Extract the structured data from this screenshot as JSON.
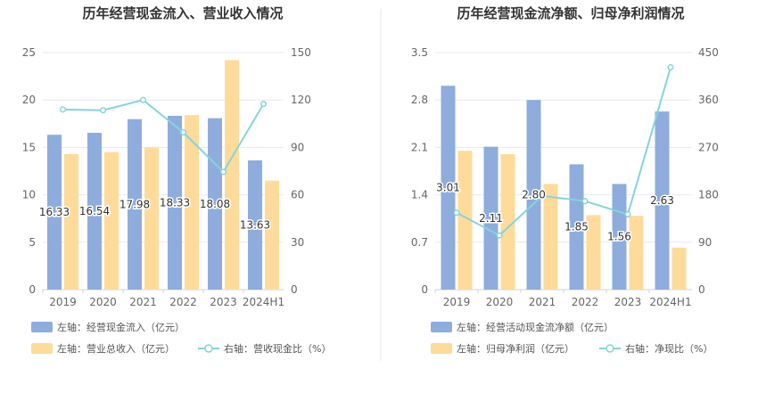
{
  "chart_data": [
    {
      "type": "bar",
      "title": "历年经营现金流入、营业收入情况",
      "categories": [
        "2019",
        "2020",
        "2021",
        "2022",
        "2023",
        "2024H1"
      ],
      "left_ticks": [
        "0",
        "5",
        "10",
        "15",
        "20",
        "25"
      ],
      "right_ticks": [
        "0",
        "30",
        "60",
        "90",
        "120",
        "150"
      ],
      "ylim_left": [
        0,
        25
      ],
      "ylim_right": [
        0,
        150
      ],
      "grid": true,
      "legend_position": "bottom-left",
      "series": [
        {
          "name": "左轴：经营现金流入（亿元）",
          "type": "bar",
          "axis": "left",
          "color": "#8eaddc",
          "values": [
            16.33,
            16.54,
            17.98,
            18.33,
            18.08,
            13.63
          ],
          "labels": [
            "16.33",
            "16.54",
            "17.98",
            "18.33",
            "18.08",
            "13.63"
          ]
        },
        {
          "name": "左轴：营业总收入（亿元）",
          "type": "bar",
          "axis": "left",
          "color": "#fedb9b",
          "values": [
            14.3,
            14.5,
            15.0,
            18.4,
            24.2,
            11.5
          ]
        },
        {
          "name": "右轴：营收现金比（%）",
          "type": "line",
          "axis": "right",
          "color": "#86d3dc",
          "values": [
            114,
            113.5,
            120,
            99.5,
            74.5,
            117.5
          ]
        }
      ]
    },
    {
      "type": "bar",
      "title": "历年经营现金流净额、归母净利润情况",
      "categories": [
        "2019",
        "2020",
        "2021",
        "2022",
        "2023",
        "2024H1"
      ],
      "left_ticks": [
        "0",
        "0.7",
        "1.4",
        "2.1",
        "2.8",
        "3.5"
      ],
      "right_ticks": [
        "0",
        "90",
        "180",
        "270",
        "360",
        "450"
      ],
      "ylim_left": [
        0,
        3.5
      ],
      "ylim_right": [
        0,
        450
      ],
      "grid": true,
      "legend_position": "bottom-left",
      "series": [
        {
          "name": "左轴：经营活动现金流净额（亿元）",
          "type": "bar",
          "axis": "left",
          "color": "#8eaddc",
          "values": [
            3.01,
            2.11,
            2.8,
            1.85,
            1.56,
            2.63
          ],
          "labels": [
            "3.01",
            "2.11",
            "2.80",
            "1.85",
            "1.56",
            "2.63"
          ]
        },
        {
          "name": "左轴：归母净利润（亿元）",
          "type": "bar",
          "axis": "left",
          "color": "#fedb9b",
          "values": [
            2.05,
            2.0,
            1.56,
            1.1,
            1.09,
            0.62
          ]
        },
        {
          "name": "右轴：净现比（%）",
          "type": "line",
          "axis": "right",
          "color": "#86d3dc",
          "values": [
            146,
            103,
            178,
            168,
            143,
            422
          ]
        }
      ]
    }
  ]
}
